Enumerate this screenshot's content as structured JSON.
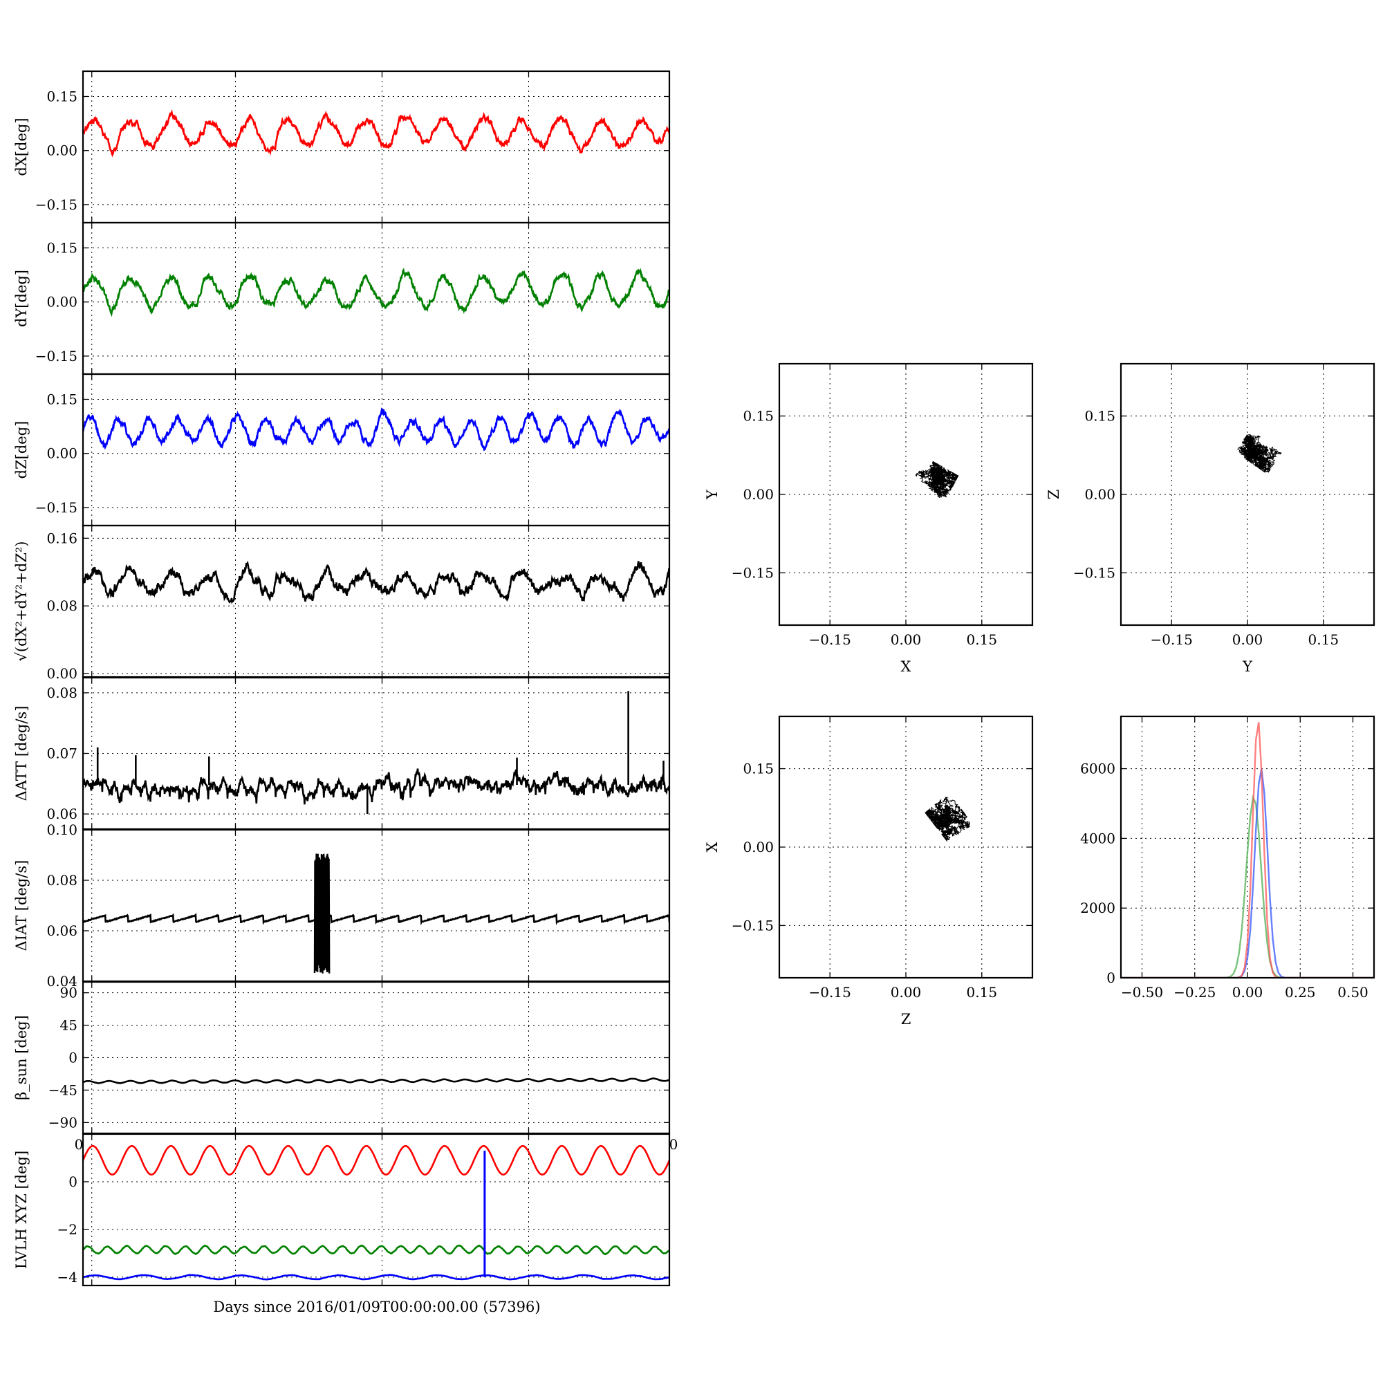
{
  "chart_data": [
    {
      "id": "dx",
      "type": "line",
      "ylabel": "dX[deg]",
      "xlim": [
        0,
        20
      ],
      "ylim": [
        -0.2,
        0.22
      ],
      "yticks": [
        0.15,
        0.0,
        -0.15
      ],
      "ytick_labels": [
        "0.15",
        "0.00",
        "−0.15"
      ],
      "series": [
        {
          "color": "#ff0000",
          "mean": 0.05,
          "amp": 0.035,
          "cycles": 15,
          "noise": 0.012,
          "seed": 3
        }
      ]
    },
    {
      "id": "dy",
      "type": "line",
      "ylabel": "dY[deg]",
      "xlim": [
        0,
        20
      ],
      "ylim": [
        -0.2,
        0.22
      ],
      "yticks": [
        0.15,
        0.0,
        -0.15
      ],
      "ytick_labels": [
        "0.15",
        "0.00",
        "−0.15"
      ],
      "series": [
        {
          "color": "#008000",
          "mean": 0.03,
          "amp": 0.04,
          "cycles": 15,
          "noise": 0.012,
          "seed": 7
        }
      ]
    },
    {
      "id": "dz",
      "type": "line",
      "ylabel": "dZ[deg]",
      "xlim": [
        0,
        20
      ],
      "ylim": [
        -0.2,
        0.22
      ],
      "yticks": [
        0.15,
        0.0,
        -0.15
      ],
      "ytick_labels": [
        "0.15",
        "0.00",
        "−0.15"
      ],
      "series": [
        {
          "color": "#0000ff",
          "mean": 0.065,
          "amp": 0.035,
          "cycles": 20,
          "noise": 0.012,
          "seed": 11
        }
      ]
    },
    {
      "id": "mag",
      "type": "line",
      "ylabel": "√(dX²+dY²+dZ²)",
      "xlim": [
        0,
        20
      ],
      "ylim": [
        -0.004,
        0.175
      ],
      "yticks": [
        0.16,
        0.08,
        0.0
      ],
      "ytick_labels": [
        "0.16",
        "0.08",
        "0.00"
      ],
      "series": [
        {
          "color": "#000000",
          "mean": 0.108,
          "amp": 0.012,
          "cycles": 15,
          "noise": 0.008,
          "seed": 19
        }
      ]
    },
    {
      "id": "datt",
      "type": "line",
      "ylabel": "ΔATT [deg/s]",
      "xlim": [
        0,
        20
      ],
      "ylim": [
        0.0575,
        0.0825
      ],
      "yticks": [
        0.08,
        0.07,
        0.06
      ],
      "ytick_labels": [
        "0.08",
        "0.07",
        "0.06"
      ],
      "series": [
        {
          "color": "#000000",
          "mean": 0.0645,
          "amp": 0.0004,
          "cycles": 60,
          "noise": 0.0012,
          "seed": 23
        }
      ],
      "spikes": [
        [
          0.5,
          0.071
        ],
        [
          1.8,
          0.0697
        ],
        [
          4.3,
          0.0695
        ],
        [
          9.7,
          0.06
        ],
        [
          14.8,
          0.0693
        ],
        [
          18.6,
          0.0803
        ],
        [
          19.8,
          0.0688
        ]
      ]
    },
    {
      "id": "diat",
      "type": "line",
      "ylabel": "ΔIAT [deg/s]",
      "xlim": [
        0,
        20
      ],
      "ylim": [
        0.04,
        0.1
      ],
      "yticks": [
        0.1,
        0.08,
        0.06,
        0.04
      ],
      "ytick_labels": [
        "0.10",
        "0.08",
        "0.06",
        "0.04"
      ],
      "series": [
        {
          "color": "#000000",
          "mean": 0.0648,
          "amp": 0.0013,
          "cycles": 26,
          "noise": 0.0003,
          "seed": 29
        }
      ],
      "burst": {
        "x0": 7.9,
        "x1": 8.4,
        "low": 0.043,
        "high": 0.091
      }
    },
    {
      "id": "beta",
      "type": "line",
      "ylabel": "β_sun [deg]",
      "xlim": [
        0,
        20
      ],
      "ylim": [
        -105,
        105
      ],
      "yticks": [
        90,
        45,
        0,
        -45,
        -90
      ],
      "ytick_labels": [
        "90",
        "45",
        "0",
        "−45",
        "−90"
      ],
      "series": [
        {
          "color": "#000000",
          "mean": -34,
          "amp": 1.6,
          "cycles": 28,
          "noise": 0.2,
          "drift": 3.5,
          "seed": 31
        }
      ]
    },
    {
      "id": "lvlh",
      "type": "line",
      "ylabel": "LVLH XYZ [deg]",
      "xlim": [
        0,
        20
      ],
      "ylim": [
        -4.35,
        2.0
      ],
      "yticks": [
        0,
        -2,
        -4
      ],
      "ytick_labels": [
        "0",
        "−2",
        "−4"
      ],
      "xtick_labels": [
        "0",
        "0"
      ],
      "series": [
        {
          "color": "#ff0000",
          "mean": 0.9,
          "amp": 0.6,
          "cycles": 15,
          "noise": 0.0,
          "seed": 1
        },
        {
          "color": "#008000",
          "mean": -2.85,
          "amp": 0.15,
          "cycles": 30,
          "noise": 0.02,
          "seed": 2
        },
        {
          "color": "#0000ff",
          "mean": -4.0,
          "amp": 0.08,
          "cycles": 12,
          "noise": 0.01,
          "seed": 4
        }
      ],
      "vline": {
        "x": 13.7,
        "y0": -4.0,
        "y1": 1.3,
        "color": "#0000ff"
      }
    },
    {
      "id": "xy",
      "type": "scatter",
      "xlabel": "X",
      "ylabel": "Y",
      "xlim": [
        -0.25,
        0.25
      ],
      "ylim": [
        -0.25,
        0.25
      ],
      "xticks": [
        -0.15,
        0.0,
        0.15
      ],
      "xtick_labels": [
        "−0.15",
        "0.00",
        "0.15"
      ],
      "yticks": [
        0.15,
        0.0,
        -0.15
      ],
      "ytick_labels": [
        "0.15",
        "0.00",
        "−0.15"
      ],
      "cloud": {
        "cx": 0.055,
        "cy": 0.025,
        "rx": 0.075,
        "ry": 0.065,
        "tilt": -0.5,
        "seed": 41
      }
    },
    {
      "id": "yz",
      "type": "scatter",
      "xlabel": "Y",
      "ylabel": "Z",
      "xlim": [
        -0.25,
        0.25
      ],
      "ylim": [
        -0.25,
        0.25
      ],
      "xticks": [
        -0.15,
        0.0,
        0.15
      ],
      "xtick_labels": [
        "−0.15",
        "0.00",
        "0.15"
      ],
      "yticks": [
        0.15,
        0.0,
        -0.15
      ],
      "ytick_labels": [
        "0.15",
        "0.00",
        "−0.15"
      ],
      "cloud": {
        "cx": 0.025,
        "cy": 0.085,
        "rx": 0.075,
        "ry": 0.06,
        "tilt": -0.6,
        "seed": 43
      }
    },
    {
      "id": "zx",
      "type": "scatter",
      "xlabel": "Z",
      "ylabel": "X",
      "xlim": [
        -0.25,
        0.25
      ],
      "ylim": [
        -0.25,
        0.25
      ],
      "xticks": [
        -0.15,
        0.0,
        0.15
      ],
      "xtick_labels": [
        "−0.15",
        "0.00",
        "0.15"
      ],
      "yticks": [
        0.15,
        0.0,
        -0.15
      ],
      "ytick_labels": [
        "0.15",
        "0.00",
        "−0.15"
      ],
      "cloud": {
        "cx": 0.085,
        "cy": 0.055,
        "rx": 0.075,
        "ry": 0.06,
        "tilt": -0.9,
        "seed": 47
      }
    },
    {
      "id": "hist",
      "type": "line",
      "xlabel": "",
      "ylabel": "",
      "xlim": [
        -0.6,
        0.6
      ],
      "ylim": [
        0,
        7500
      ],
      "xticks": [
        -0.5,
        -0.25,
        0.0,
        0.25,
        0.5
      ],
      "xtick_labels": [
        "−0.50",
        "−0.25",
        "0.00",
        "0.25",
        "0.50"
      ],
      "yticks": [
        6000,
        4000,
        2000,
        0
      ],
      "ytick_labels": [
        "6000",
        "4000",
        "2000",
        "0"
      ],
      "series": [
        {
          "name": "",
          "color": "#4caf50",
          "mu": 0.03,
          "sigma": 0.035,
          "peak": 5200
        },
        {
          "name": "",
          "color": "#3355ff",
          "mu": 0.065,
          "sigma": 0.03,
          "peak": 6000
        },
        {
          "name": "",
          "color": "#ff5555",
          "mu": 0.05,
          "sigma": 0.025,
          "peak": 7400
        }
      ]
    }
  ],
  "xlabel": "Days since 2016/01/09T00:00:00.00 (57396)"
}
